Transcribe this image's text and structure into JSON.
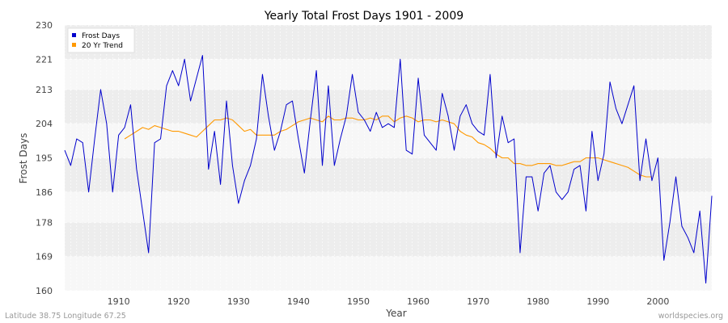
{
  "chart_data": {
    "type": "line",
    "title": "Yearly Total Frost Days 1901 - 2009",
    "xlabel": "Year",
    "ylabel": "Frost Days",
    "xlim": [
      1901,
      2009
    ],
    "ylim": [
      160,
      230
    ],
    "yticks": [
      "160",
      "169",
      "178",
      "186",
      "195",
      "204",
      "213",
      "221",
      "230"
    ],
    "xticks": [
      "1910",
      "1920",
      "1930",
      "1940",
      "1950",
      "1960",
      "1970",
      "1980",
      "1990",
      "2000"
    ],
    "grid": true,
    "legend_position": "top-left",
    "series": [
      {
        "name": "Frost Days",
        "color": "#0000cc",
        "x": [
          1901,
          1902,
          1903,
          1904,
          1905,
          1906,
          1907,
          1908,
          1909,
          1910,
          1911,
          1912,
          1913,
          1914,
          1915,
          1916,
          1917,
          1918,
          1919,
          1920,
          1921,
          1922,
          1923,
          1924,
          1925,
          1926,
          1927,
          1928,
          1929,
          1930,
          1931,
          1932,
          1933,
          1934,
          1935,
          1936,
          1937,
          1938,
          1939,
          1940,
          1941,
          1942,
          1943,
          1944,
          1945,
          1946,
          1947,
          1948,
          1949,
          1950,
          1951,
          1952,
          1953,
          1954,
          1955,
          1956,
          1957,
          1958,
          1959,
          1960,
          1961,
          1962,
          1963,
          1964,
          1965,
          1966,
          1967,
          1968,
          1969,
          1970,
          1971,
          1972,
          1973,
          1974,
          1975,
          1976,
          1977,
          1978,
          1979,
          1980,
          1981,
          1982,
          1983,
          1984,
          1985,
          1986,
          1987,
          1988,
          1989,
          1990,
          1991,
          1992,
          1993,
          1994,
          1995,
          1996,
          1997,
          1998,
          1999,
          2000,
          2001,
          2002,
          2003,
          2004,
          2005,
          2006,
          2007,
          2008,
          2009
        ],
        "values": [
          197,
          193,
          200,
          199,
          186,
          200,
          213,
          204,
          186,
          201,
          203,
          209,
          192,
          181,
          170,
          199,
          200,
          214,
          218,
          214,
          221,
          210,
          216,
          222,
          192,
          202,
          188,
          210,
          193,
          183,
          189,
          193,
          200,
          217,
          206,
          197,
          202,
          209,
          210,
          200,
          191,
          205,
          218,
          193,
          214,
          193,
          200,
          206,
          217,
          207,
          205,
          202,
          207,
          203,
          204,
          203,
          221,
          197,
          196,
          216,
          201,
          199,
          197,
          212,
          206,
          197,
          206,
          209,
          204,
          202,
          201,
          217,
          195,
          206,
          199,
          200,
          170,
          190,
          190,
          181,
          191,
          193,
          186,
          184,
          186,
          192,
          193,
          181,
          202,
          189,
          196,
          215,
          208,
          204,
          209,
          214,
          189,
          200,
          189,
          195,
          168,
          178,
          190,
          177,
          174,
          170,
          181,
          162,
          185
        ]
      },
      {
        "name": "20 Yr Trend",
        "color": "#ff9900",
        "x": [
          1911,
          1912,
          1913,
          1914,
          1915,
          1916,
          1917,
          1918,
          1919,
          1920,
          1921,
          1922,
          1923,
          1924,
          1925,
          1926,
          1927,
          1928,
          1929,
          1930,
          1931,
          1932,
          1933,
          1934,
          1935,
          1936,
          1937,
          1938,
          1939,
          1940,
          1941,
          1942,
          1943,
          1944,
          1945,
          1946,
          1947,
          1948,
          1949,
          1950,
          1951,
          1952,
          1953,
          1954,
          1955,
          1956,
          1957,
          1958,
          1959,
          1960,
          1961,
          1962,
          1963,
          1964,
          1965,
          1966,
          1967,
          1968,
          1969,
          1970,
          1971,
          1972,
          1973,
          1974,
          1975,
          1976,
          1977,
          1978,
          1979,
          1980,
          1981,
          1982,
          1983,
          1984,
          1985,
          1986,
          1987,
          1988,
          1989,
          1990,
          1991,
          1992,
          1993,
          1994,
          1995,
          1996,
          1997,
          1998,
          1999
        ],
        "values": [
          200,
          201,
          202,
          203,
          202.5,
          203.5,
          203,
          202.5,
          202,
          202,
          201.5,
          201,
          200.5,
          202,
          203.5,
          205,
          205,
          205.5,
          205,
          203.5,
          202,
          202.5,
          201,
          201,
          201,
          201,
          202,
          202.5,
          203.5,
          204.5,
          205,
          205.5,
          205,
          204.5,
          206,
          205,
          205,
          205.5,
          205.5,
          205,
          205,
          205.5,
          205,
          206,
          206,
          204.5,
          205.5,
          206,
          205.5,
          204.5,
          205,
          205,
          204.5,
          205,
          204.5,
          204,
          202,
          201,
          200.5,
          199,
          198.5,
          197.5,
          196,
          195,
          195,
          193.5,
          193.5,
          193,
          193,
          193.5,
          193.5,
          193.5,
          193,
          193,
          193.5,
          194,
          194,
          195,
          195,
          195,
          194.5,
          194,
          193.5,
          193,
          192.5,
          191.5,
          190.5,
          190,
          190
        ]
      }
    ]
  },
  "footer": {
    "location": "Latitude 38.75 Longitude 67.25",
    "source": "worldspecies.org"
  }
}
